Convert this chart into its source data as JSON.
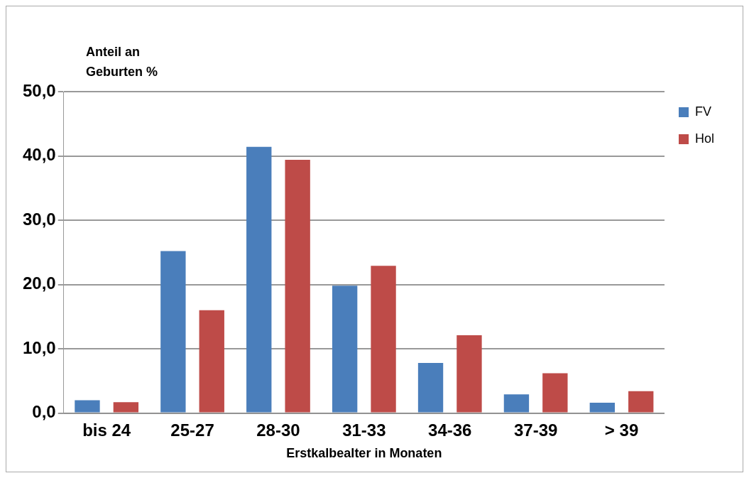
{
  "chart_data": {
    "type": "bar",
    "ylabel": "Anteil an Geburten %",
    "xlabel": "Erstkalbealter in Monaten",
    "categories": [
      "bis 24",
      "25-27",
      "28-30",
      "31-33",
      "34-36",
      "37-39",
      "> 39"
    ],
    "series": [
      {
        "name": "FV",
        "color": "#4a7ebb",
        "values": [
          2.0,
          25.2,
          41.4,
          19.8,
          7.8,
          2.9,
          1.6
        ]
      },
      {
        "name": "Hol",
        "color": "#be4b48",
        "values": [
          1.7,
          16.0,
          39.4,
          22.9,
          12.1,
          6.2,
          3.4
        ]
      }
    ],
    "ylim": [
      0,
      50
    ],
    "yticks": [
      {
        "value": 0,
        "label": "0,0"
      },
      {
        "value": 10,
        "label": "10,0"
      },
      {
        "value": 20,
        "label": "20,0"
      },
      {
        "value": 30,
        "label": "30,0"
      },
      {
        "value": 40,
        "label": "40,0"
      },
      {
        "value": 50,
        "label": "50,0"
      }
    ],
    "grid": "y",
    "legend": "top right"
  }
}
